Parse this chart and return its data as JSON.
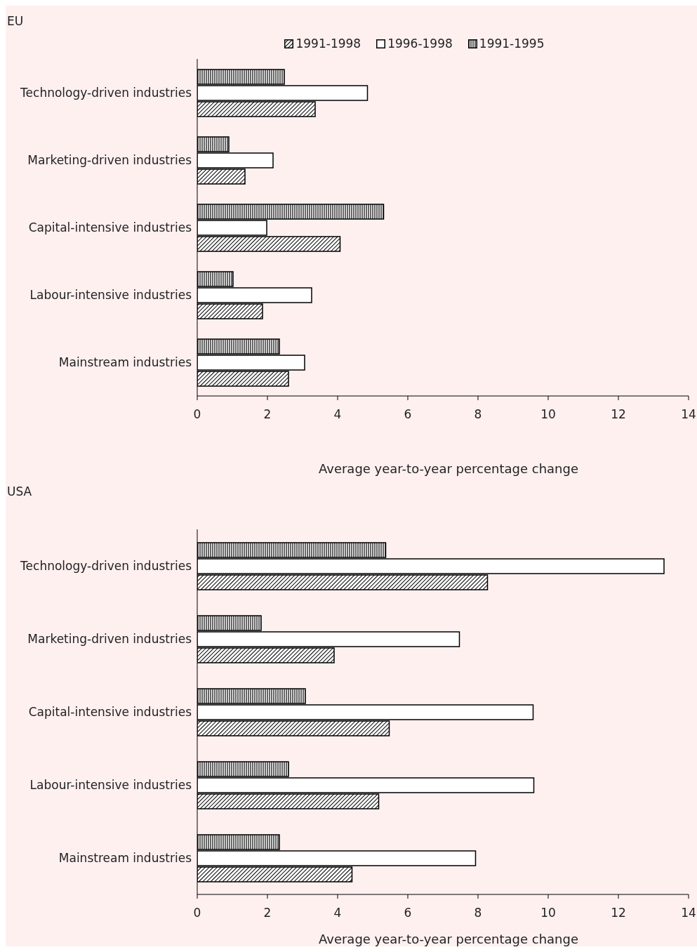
{
  "chart_data": [
    {
      "type": "bar",
      "orientation": "horizontal",
      "title": "EU",
      "xlabel": "Average year-to-year percentage change",
      "categories": [
        "Technology-driven industries",
        "Marketing-driven industries",
        "Capital-intensive industries",
        "Labour-intensive industries",
        "Mainstream industries"
      ],
      "series": [
        {
          "name": "1991-1998",
          "color": "#000000",
          "values": [
            3.36,
            1.36,
            4.07,
            1.86,
            2.6
          ]
        },
        {
          "name": "1996-1998",
          "color": "#ffffff",
          "values": [
            4.85,
            2.16,
            1.98,
            3.26,
            3.06
          ]
        },
        {
          "name": "1991-1995",
          "color": "#000000",
          "values": [
            2.48,
            0.9,
            5.31,
            1.02,
            2.34
          ]
        }
      ],
      "xlim": [
        0,
        14
      ],
      "xticks": [
        0,
        2,
        4,
        6,
        8,
        10,
        12,
        14
      ],
      "grid": false,
      "legend": "top"
    },
    {
      "type": "bar",
      "orientation": "horizontal",
      "title": "USA",
      "xlabel": "Average year-to-year percentage change",
      "categories": [
        "Technology-driven industries",
        "Marketing-driven industries",
        "Capital-intensive industries",
        "Labour-intensive industries",
        "Mainstream industries"
      ],
      "series": [
        {
          "color": "#000000",
          "values": [
            8.27,
            3.9,
            5.47,
            5.17,
            4.41
          ]
        },
        {
          "color": "#ffffff",
          "values": [
            13.3,
            7.47,
            9.57,
            9.59,
            7.93
          ]
        },
        {
          "color": "#000000",
          "values": [
            5.37,
            1.82,
            3.08,
            2.6,
            2.34
          ]
        }
      ],
      "xlim": [
        0,
        14
      ],
      "xticks": [
        0,
        2,
        4,
        6,
        8,
        10,
        12,
        14
      ],
      "grid": false
    }
  ]
}
